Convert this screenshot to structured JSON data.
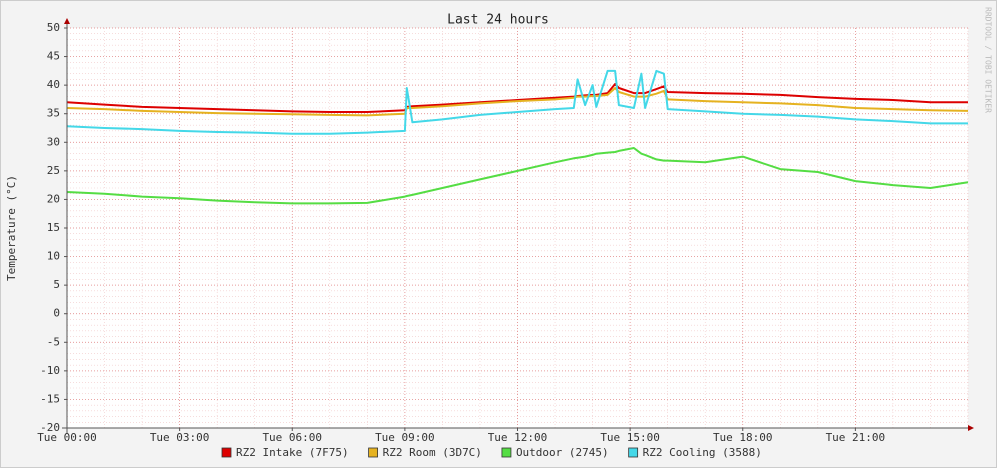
{
  "chart_data": {
    "type": "line",
    "title": "Last 24 hours",
    "y_label": "Temperature (°C)",
    "watermark": "RRDTOOL / TOBI OETIKER",
    "x": [
      0,
      1,
      2,
      3,
      4,
      5,
      6,
      7,
      8,
      9,
      9.05,
      9.2,
      10,
      11,
      12,
      13,
      13.5,
      13.6,
      13.8,
      14,
      14.1,
      14.4,
      14.6,
      14.7,
      15.1,
      15.3,
      15.4,
      15.7,
      15.9,
      16,
      17,
      18,
      19,
      20,
      21,
      22,
      23,
      24
    ],
    "xlim": [
      0,
      24
    ],
    "xticks": [
      {
        "value": 0,
        "label": "Tue 00:00"
      },
      {
        "value": 3,
        "label": "Tue 03:00"
      },
      {
        "value": 6,
        "label": "Tue 06:00"
      },
      {
        "value": 9,
        "label": "Tue 09:00"
      },
      {
        "value": 12,
        "label": "Tue 12:00"
      },
      {
        "value": 15,
        "label": "Tue 15:00"
      },
      {
        "value": 18,
        "label": "Tue 18:00"
      },
      {
        "value": 21,
        "label": "Tue 21:00"
      }
    ],
    "ylim": [
      -20,
      50
    ],
    "yticks": [
      -20,
      -15,
      -10,
      -5,
      0,
      5,
      10,
      15,
      20,
      25,
      30,
      35,
      40,
      45,
      50
    ],
    "grid": true,
    "legend": "bottom",
    "series": [
      {
        "name": "RZ2 Intake (7F75)",
        "color": "#dd0000",
        "values": [
          37,
          36.6,
          36.2,
          36,
          35.8,
          35.6,
          35.4,
          35.3,
          35.3,
          35.6,
          36.2,
          36.3,
          36.6,
          37,
          37.4,
          37.8,
          38,
          38.1,
          38.2,
          38.3,
          38.3,
          38.6,
          40.2,
          39.5,
          38.6,
          38.6,
          38.6,
          39.3,
          39.8,
          38.8,
          38.6,
          38.5,
          38.3,
          37.9,
          37.6,
          37.4,
          37,
          37
        ]
      },
      {
        "name": "RZ2 Room (3D7C)",
        "color": "#e5b220",
        "values": [
          36,
          35.8,
          35.5,
          35.3,
          35.1,
          35,
          34.9,
          34.8,
          34.7,
          35,
          36,
          36,
          36.3,
          36.8,
          37.2,
          37.5,
          37.8,
          38,
          38,
          38.1,
          38.1,
          38.3,
          39.5,
          38.8,
          38,
          38,
          38,
          38.5,
          39,
          37.5,
          37.2,
          37,
          36.8,
          36.5,
          36,
          35.8,
          35.6,
          35.5
        ]
      },
      {
        "name": "Outdoor (2745)",
        "color": "#55dd44",
        "values": [
          21.3,
          21,
          20.5,
          20.2,
          19.8,
          19.5,
          19.3,
          19.3,
          19.4,
          20.5,
          20.6,
          20.8,
          22,
          23.5,
          25,
          26.5,
          27.2,
          27.3,
          27.5,
          27.8,
          28,
          28.2,
          28.3,
          28.5,
          29,
          28,
          27.8,
          27,
          26.8,
          26.8,
          26.5,
          27.5,
          25.3,
          24.8,
          23.2,
          22.5,
          22,
          23
        ]
      },
      {
        "name": "RZ2 Cooling (3588)",
        "color": "#44d8e8",
        "values": [
          32.8,
          32.5,
          32.3,
          32,
          31.8,
          31.7,
          31.5,
          31.5,
          31.7,
          32,
          39.5,
          33.5,
          34,
          34.8,
          35.3,
          35.8,
          36,
          41,
          36.5,
          40,
          36.2,
          42.5,
          42.5,
          36.5,
          36,
          42,
          36,
          42.5,
          42,
          35.8,
          35.4,
          35,
          34.8,
          34.5,
          34,
          33.7,
          33.3,
          33.3
        ]
      }
    ]
  }
}
